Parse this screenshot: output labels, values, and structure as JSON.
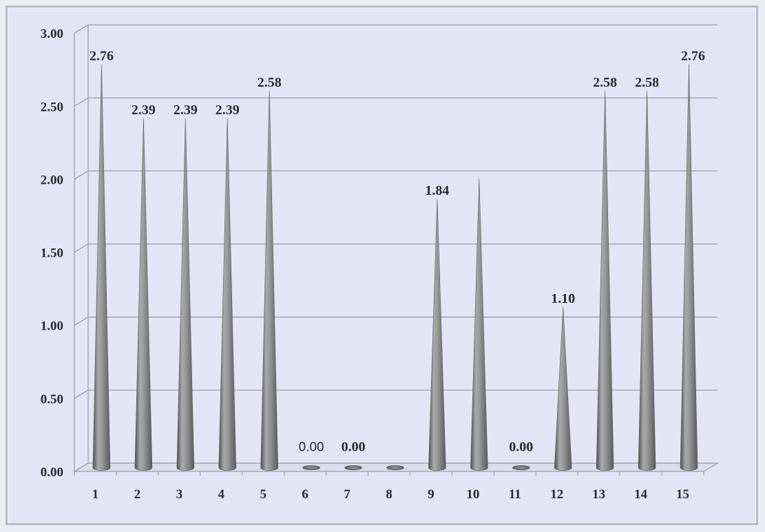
{
  "chart_data": {
    "type": "bar",
    "style": "3d-cone",
    "categories": [
      "1",
      "2",
      "3",
      "4",
      "5",
      "6",
      "7",
      "8",
      "9",
      "10",
      "11",
      "12",
      "13",
      "14",
      "15"
    ],
    "values": [
      2.76,
      2.39,
      2.39,
      2.39,
      2.58,
      0.0,
      0.0,
      0.0,
      1.84,
      1.98,
      0.0,
      1.1,
      2.58,
      2.58,
      2.76
    ],
    "data_labels": [
      "2.76",
      "2.39",
      "2.39",
      "2.39",
      "2.58",
      "0.00",
      "0.00",
      "",
      "1.84",
      "",
      "0.00",
      "1.10",
      "2.58",
      "2.58",
      "2.76"
    ],
    "y_ticks": [
      "0.00",
      "0.50",
      "1.00",
      "1.50",
      "2.00",
      "2.50",
      "3.00"
    ],
    "ylim": [
      0,
      3
    ],
    "title": "",
    "xlabel": "",
    "ylabel": "",
    "grid": true,
    "legend": "none",
    "colors": {
      "cone": "#8a8a8a",
      "background": "#e4e4f6",
      "grid": "#9c9ca8",
      "text": "#2b2b2b"
    }
  }
}
